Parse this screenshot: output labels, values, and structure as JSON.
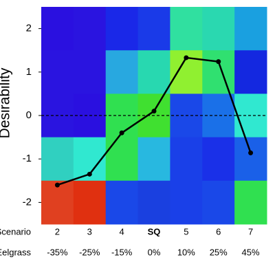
{
  "chart_data": {
    "type": "heatmap-line",
    "y_label": "Desirability",
    "row_labels": [
      "Scenario",
      "Eelgrass"
    ],
    "categories": [
      "2",
      "3",
      "4",
      "SQ",
      "5",
      "6",
      "7"
    ],
    "bold_category": "SQ",
    "eelgrass_labels": [
      "-35%",
      "-25%",
      "-15%",
      "0%",
      "10%",
      "25%",
      "45%"
    ],
    "values": [
      -1.6,
      -1.35,
      -0.4,
      0.1,
      1.33,
      1.24,
      -0.86
    ],
    "line_color": "#000000",
    "reference_line": 0,
    "ylim": [
      -2.5,
      2.5
    ],
    "yticks": [
      -2,
      -1,
      0,
      1,
      2
    ],
    "cell_colors": [
      [
        "#2a10e0",
        "#2a14e0",
        "#1a28e8",
        "#1a3ae8",
        "#30e0a0",
        "#2ad8b0",
        "#1aa0e0"
      ],
      [
        "#2a14e0",
        "#2a14e0",
        "#28a8e0",
        "#28d8b0",
        "#90f030",
        "#30e070",
        "#1428e0"
      ],
      [
        "#2a14e0",
        "#2a10e0",
        "#30e050",
        "#40e030",
        "#1a48e8",
        "#1a70e8",
        "#30e8d0"
      ],
      [
        "#30d0c0",
        "#30e8d0",
        "#30e050",
        "#28b8e0",
        "#1a40e8",
        "#1a30e8",
        "#1a60e8"
      ],
      [
        "#e04020",
        "#e03010",
        "#1a48e8",
        "#1a40e0",
        "#1a40e8",
        "#1a48e8",
        "#30e050"
      ]
    ]
  }
}
